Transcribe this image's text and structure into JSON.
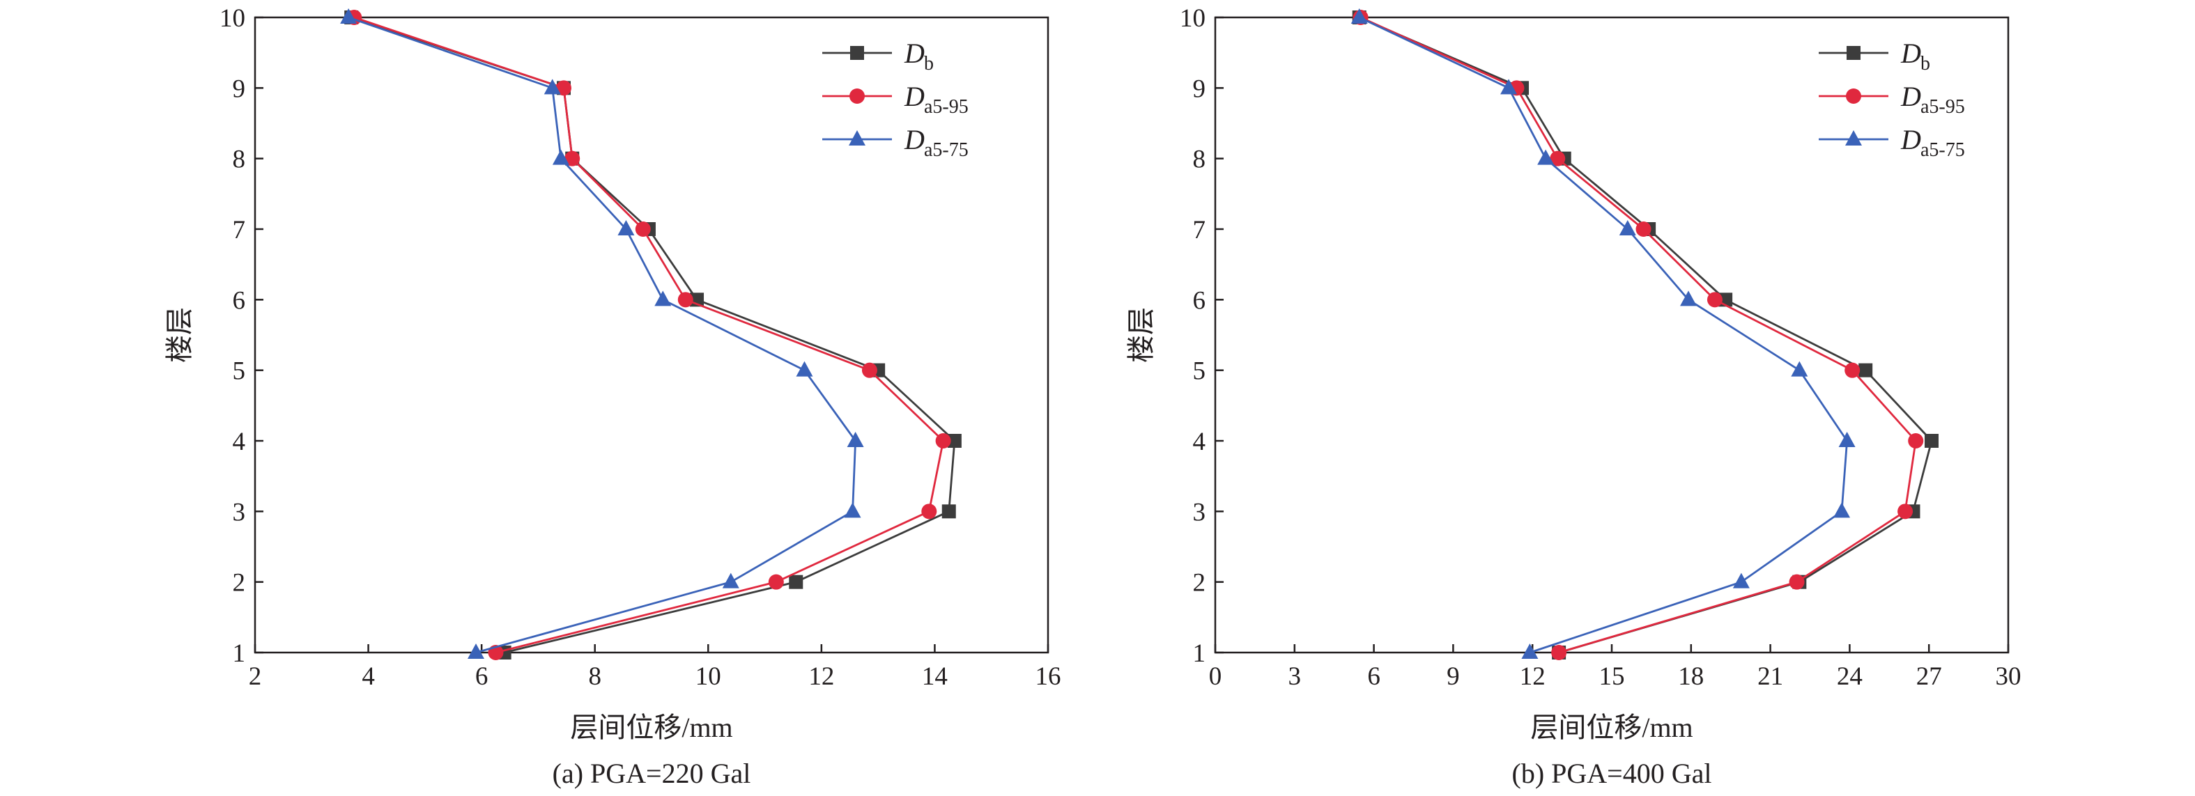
{
  "colors": {
    "Db": "#3c3c3c",
    "Da5-95": "#e0283e",
    "Da5-75": "#3a62b8",
    "axis": "#231f20"
  },
  "legend": [
    {
      "key": "Db",
      "base": "D",
      "sub": "b",
      "marker": "square"
    },
    {
      "key": "Da5-95",
      "base": "D",
      "sub": "a5-95",
      "marker": "circle"
    },
    {
      "key": "Da5-75",
      "base": "D",
      "sub": "a5-75",
      "marker": "triangle"
    }
  ],
  "chart_data": [
    {
      "type": "line",
      "caption": "(a) PGA=220 Gal",
      "xlabel": "层间位移/mm",
      "ylabel": "楼层",
      "xlim": [
        2,
        16
      ],
      "ylim": [
        1,
        10
      ],
      "xticks": [
        "2",
        "4",
        "6",
        "8",
        "10",
        "12",
        "14",
        "16"
      ],
      "yticks": [
        "1",
        "2",
        "3",
        "4",
        "5",
        "6",
        "7",
        "8",
        "9",
        "10"
      ],
      "legend_position": "top-right",
      "series": [
        {
          "name": "Db",
          "x": [
            6.4,
            11.55,
            14.25,
            14.35,
            13.0,
            9.8,
            8.95,
            7.6,
            7.45,
            3.7
          ],
          "y": [
            1,
            2,
            3,
            4,
            5,
            6,
            7,
            8,
            9,
            10
          ]
        },
        {
          "name": "Da5-95",
          "x": [
            6.25,
            11.2,
            13.9,
            14.15,
            12.85,
            9.6,
            8.85,
            7.6,
            7.45,
            3.75
          ],
          "y": [
            1,
            2,
            3,
            4,
            5,
            6,
            7,
            8,
            9,
            10
          ]
        },
        {
          "name": "Da5-75",
          "x": [
            5.9,
            10.4,
            12.55,
            12.6,
            11.7,
            9.2,
            8.55,
            7.4,
            7.25,
            3.65
          ],
          "y": [
            1,
            2,
            3,
            4,
            5,
            6,
            7,
            8,
            9,
            10
          ]
        }
      ]
    },
    {
      "type": "line",
      "caption": "(b) PGA=400 Gal",
      "xlabel": "层间位移/mm",
      "ylabel": "楼层",
      "xlim": [
        0,
        30
      ],
      "ylim": [
        1,
        10
      ],
      "xticks": [
        "0",
        "3",
        "6",
        "9",
        "12",
        "15",
        "18",
        "21",
        "24",
        "27",
        "30"
      ],
      "yticks": [
        "1",
        "2",
        "3",
        "4",
        "5",
        "6",
        "7",
        "8",
        "9",
        "10"
      ],
      "legend_position": "top-right",
      "series": [
        {
          "name": "Db",
          "x": [
            13.0,
            22.1,
            26.4,
            27.1,
            24.6,
            19.3,
            16.4,
            13.2,
            11.6,
            5.45
          ],
          "y": [
            1,
            2,
            3,
            4,
            5,
            6,
            7,
            8,
            9,
            10
          ]
        },
        {
          "name": "Da5-95",
          "x": [
            13.0,
            22.0,
            26.1,
            26.5,
            24.1,
            18.9,
            16.2,
            12.95,
            11.4,
            5.5
          ],
          "y": [
            1,
            2,
            3,
            4,
            5,
            6,
            7,
            8,
            9,
            10
          ]
        },
        {
          "name": "Da5-75",
          "x": [
            11.9,
            19.9,
            23.7,
            23.9,
            22.1,
            17.9,
            15.6,
            12.5,
            11.1,
            5.45
          ],
          "y": [
            1,
            2,
            3,
            4,
            5,
            6,
            7,
            8,
            9,
            10
          ]
        }
      ]
    }
  ]
}
